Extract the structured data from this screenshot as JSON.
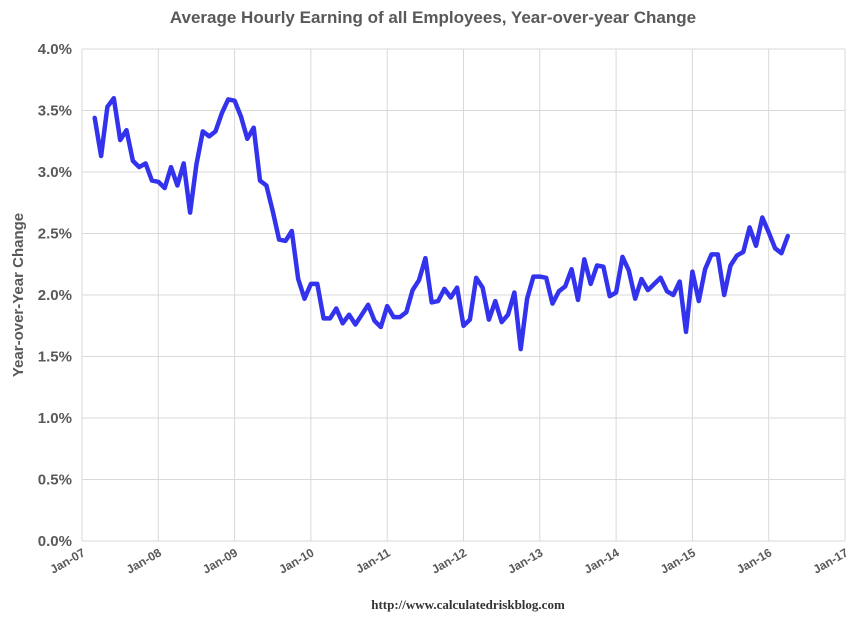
{
  "chart_data": {
    "type": "line",
    "title": "Average Hourly Earning of all Employees, Year-over-year Change",
    "ylabel": "Year-over-Year Change",
    "xlabel": "",
    "source": "http://www.calculatedriskblog.com",
    "ylim": [
      0,
      4.0
    ],
    "y_ticks": [
      0,
      0.5,
      1.0,
      1.5,
      2.0,
      2.5,
      3.0,
      3.5,
      4.0
    ],
    "y_tick_labels": [
      "0.0%",
      "0.5%",
      "1.0%",
      "1.5%",
      "2.0%",
      "2.5%",
      "3.0%",
      "3.5%",
      "4.0%"
    ],
    "x_ticks": [
      "Jan-07",
      "Jan-08",
      "Jan-09",
      "Jan-10",
      "Jan-11",
      "Jan-12",
      "Jan-13",
      "Jan-14",
      "Jan-15",
      "Jan-16",
      "Jan-17"
    ],
    "grid": true,
    "line_color": "#3333ee",
    "series": [
      {
        "x": [
          "2007-03",
          "2007-04",
          "2007-05",
          "2007-06",
          "2007-07",
          "2007-08",
          "2007-09",
          "2007-10",
          "2007-11",
          "2007-12",
          "2008-01",
          "2008-02",
          "2008-03",
          "2008-04",
          "2008-05",
          "2008-06",
          "2008-07",
          "2008-08",
          "2008-09",
          "2008-10",
          "2008-11",
          "2008-12",
          "2009-01",
          "2009-02",
          "2009-03",
          "2009-04",
          "2009-05",
          "2009-06",
          "2009-07",
          "2009-08",
          "2009-09",
          "2009-10",
          "2009-11",
          "2009-12",
          "2010-01",
          "2010-02",
          "2010-03",
          "2010-04",
          "2010-05",
          "2010-06",
          "2010-07",
          "2010-08",
          "2010-09",
          "2010-10",
          "2010-11",
          "2010-12",
          "2011-01",
          "2011-02",
          "2011-03",
          "2011-04",
          "2011-05",
          "2011-06",
          "2011-07",
          "2011-08",
          "2011-09",
          "2011-10",
          "2011-11",
          "2011-12",
          "2012-01",
          "2012-02",
          "2012-03",
          "2012-04",
          "2012-05",
          "2012-06",
          "2012-07",
          "2012-08",
          "2012-09",
          "2012-10",
          "2012-11",
          "2012-12",
          "2013-01",
          "2013-02",
          "2013-03",
          "2013-04",
          "2013-05",
          "2013-06",
          "2013-07",
          "2013-08",
          "2013-09",
          "2013-10",
          "2013-11",
          "2013-12",
          "2014-01",
          "2014-02",
          "2014-03",
          "2014-04",
          "2014-05",
          "2014-06",
          "2014-07",
          "2014-08",
          "2014-09",
          "2014-10",
          "2014-11",
          "2014-12",
          "2015-01",
          "2015-02",
          "2015-03",
          "2015-04",
          "2015-05",
          "2015-06",
          "2015-07",
          "2015-08",
          "2015-09",
          "2015-10",
          "2015-11",
          "2015-12",
          "2016-01",
          "2016-02",
          "2016-03",
          "2016-04"
        ],
        "values": [
          3.44,
          3.13,
          3.53,
          3.6,
          3.26,
          3.34,
          3.09,
          3.04,
          3.07,
          2.93,
          2.92,
          2.87,
          3.04,
          2.89,
          3.07,
          2.67,
          3.06,
          3.33,
          3.29,
          3.33,
          3.48,
          3.59,
          3.58,
          3.45,
          3.27,
          3.36,
          2.93,
          2.89,
          2.68,
          2.45,
          2.44,
          2.52,
          2.13,
          1.97,
          2.09,
          2.09,
          1.81,
          1.81,
          1.89,
          1.77,
          1.84,
          1.76,
          1.84,
          1.92,
          1.79,
          1.74,
          1.91,
          1.82,
          1.82,
          1.86,
          2.04,
          2.12,
          2.3,
          1.94,
          1.95,
          2.05,
          1.98,
          2.06,
          1.75,
          1.8,
          2.14,
          2.06,
          1.8,
          1.95,
          1.78,
          1.84,
          2.02,
          1.56,
          1.97,
          2.15,
          2.15,
          2.14,
          1.93,
          2.03,
          2.07,
          2.21,
          1.96,
          2.29,
          2.09,
          2.24,
          2.23,
          1.99,
          2.02,
          2.31,
          2.2,
          1.97,
          2.13,
          2.04,
          2.09,
          2.14,
          2.03,
          2.0,
          2.11,
          1.7,
          2.19,
          1.95,
          2.21,
          2.33,
          2.33,
          2.0,
          2.24,
          2.32,
          2.35,
          2.55,
          2.4,
          2.63,
          2.51,
          2.38,
          2.34,
          2.48
        ]
      }
    ]
  }
}
